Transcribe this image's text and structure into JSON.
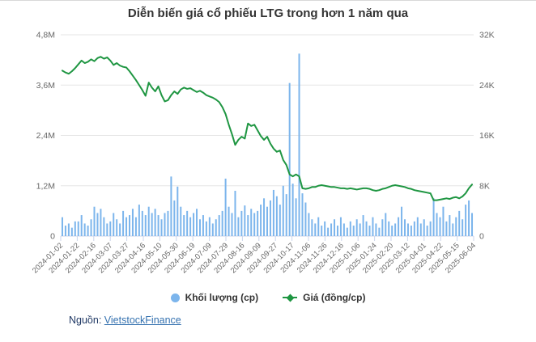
{
  "title": "Diễn biến giá cổ phiếu LTG trong hơn 1 năm qua",
  "source": {
    "label": "Nguồn:",
    "link_text": "VietstockFinance"
  },
  "legend": {
    "volume_label": "Khối lượng (cp)",
    "price_label": "Giá (đồng/cp)"
  },
  "colors": {
    "volume": "#7cb5ec",
    "price": "#1f9642",
    "grid": "#e6e6e6",
    "axis_line": "#ccd6eb",
    "tick_label": "#666666"
  },
  "chart_data": {
    "type": "combo",
    "title": "Diễn biến giá cổ phiếu LTG trong hơn 1 năm qua",
    "legend_position": "bottom",
    "grid": "horizontal",
    "x_tick_labels": [
      "2024-01-02",
      "2024-01-22",
      "2024-02-16",
      "2024-03-07",
      "2024-03-27",
      "2024-04-16",
      "2024-05-10",
      "2024-05-30",
      "2024-06-19",
      "2024-07-09",
      "2024-07-29",
      "2024-08-16",
      "2024-09-09",
      "2024-09-27",
      "2024-10-17",
      "2024-11-06",
      "2024-11-26",
      "2024-12-16",
      "2025-01-06",
      "2025-01-24",
      "2025-02-20",
      "2025-03-12",
      "2025-04-01",
      "2025-04-22",
      "2025-05-15",
      "2025-06-04"
    ],
    "y_left_axis": {
      "ticks": [
        "0",
        "1,2M",
        "2,4M",
        "3,6M",
        "4,8M"
      ],
      "min": 0,
      "max": 4.8,
      "unit": "M cp"
    },
    "y_right_axis": {
      "ticks": [
        "0",
        "8K",
        "16K",
        "24K",
        "32K"
      ],
      "min": 0,
      "max": 32,
      "unit": "K đồng/cp"
    },
    "series": [
      {
        "name": "Khối lượng (cp)",
        "type": "bar",
        "axis": "left",
        "unit": "million shares",
        "values": [
          0.45,
          0.25,
          0.3,
          0.2,
          0.35,
          0.35,
          0.5,
          0.3,
          0.25,
          0.4,
          0.7,
          0.55,
          0.65,
          0.45,
          0.3,
          0.35,
          0.55,
          0.4,
          0.3,
          0.6,
          0.45,
          0.5,
          0.65,
          0.45,
          0.75,
          0.6,
          0.5,
          0.7,
          0.55,
          0.65,
          0.5,
          0.4,
          0.55,
          0.6,
          1.42,
          0.85,
          1.18,
          0.7,
          0.5,
          0.6,
          0.45,
          0.55,
          0.65,
          0.4,
          0.5,
          0.35,
          0.45,
          0.3,
          0.4,
          0.5,
          0.6,
          1.37,
          0.7,
          0.55,
          1.08,
          0.45,
          0.6,
          0.73,
          0.5,
          0.65,
          0.55,
          0.6,
          0.75,
          0.9,
          0.7,
          0.85,
          1.1,
          0.95,
          0.75,
          1.2,
          1.0,
          3.65,
          1.25,
          0.9,
          4.35,
          1.02,
          0.8,
          0.55,
          0.4,
          0.3,
          0.45,
          0.25,
          0.35,
          0.2,
          0.3,
          0.4,
          0.25,
          0.45,
          0.3,
          0.2,
          0.35,
          0.25,
          0.4,
          0.3,
          0.5,
          0.35,
          0.25,
          0.45,
          0.3,
          0.2,
          0.4,
          0.55,
          0.35,
          0.25,
          0.3,
          0.45,
          0.7,
          0.4,
          0.3,
          0.25,
          0.35,
          0.45,
          0.3,
          0.4,
          0.25,
          0.35,
          0.9,
          0.55,
          0.45,
          0.7,
          0.35,
          0.5,
          0.3,
          0.45,
          0.6,
          0.4,
          0.75,
          0.85,
          0.55
        ]
      },
      {
        "name": "Giá (đồng/cp)",
        "type": "line",
        "axis": "right",
        "unit": "thousand dong",
        "values": [
          26.3,
          26.0,
          25.8,
          26.2,
          26.7,
          27.3,
          27.9,
          27.5,
          27.7,
          28.1,
          27.8,
          28.3,
          28.5,
          28.2,
          28.4,
          27.9,
          27.2,
          27.5,
          27.1,
          26.9,
          26.8,
          26.2,
          25.5,
          24.8,
          24.0,
          23.2,
          22.3,
          24.4,
          23.6,
          23.0,
          23.8,
          22.4,
          21.4,
          21.6,
          22.4,
          23.0,
          22.6,
          23.3,
          23.6,
          23.4,
          23.5,
          23.2,
          22.9,
          23.1,
          22.8,
          22.4,
          22.2,
          22.0,
          21.7,
          21.3,
          20.5,
          19.4,
          17.7,
          16.2,
          14.5,
          15.3,
          15.8,
          15.5,
          17.9,
          17.5,
          17.7,
          16.8,
          15.9,
          15.3,
          15.8,
          14.7,
          13.9,
          13.4,
          13.6,
          12.1,
          11.3,
          9.8,
          9.5,
          9.8,
          9.5,
          7.6,
          7.5,
          7.6,
          7.8,
          7.8,
          8.0,
          8.1,
          8.0,
          7.9,
          7.8,
          7.8,
          7.7,
          7.6,
          7.6,
          7.5,
          7.6,
          7.5,
          7.4,
          7.5,
          7.6,
          7.6,
          7.5,
          7.3,
          7.2,
          7.3,
          7.5,
          7.6,
          7.8,
          8.0,
          8.1,
          8.0,
          7.9,
          7.8,
          7.6,
          7.5,
          7.3,
          7.2,
          7.1,
          7.0,
          6.9,
          6.8,
          5.7,
          5.7,
          5.8,
          5.9,
          6.0,
          5.9,
          6.1,
          6.2,
          6.0,
          6.3,
          6.8,
          7.6,
          8.2
        ]
      }
    ]
  }
}
